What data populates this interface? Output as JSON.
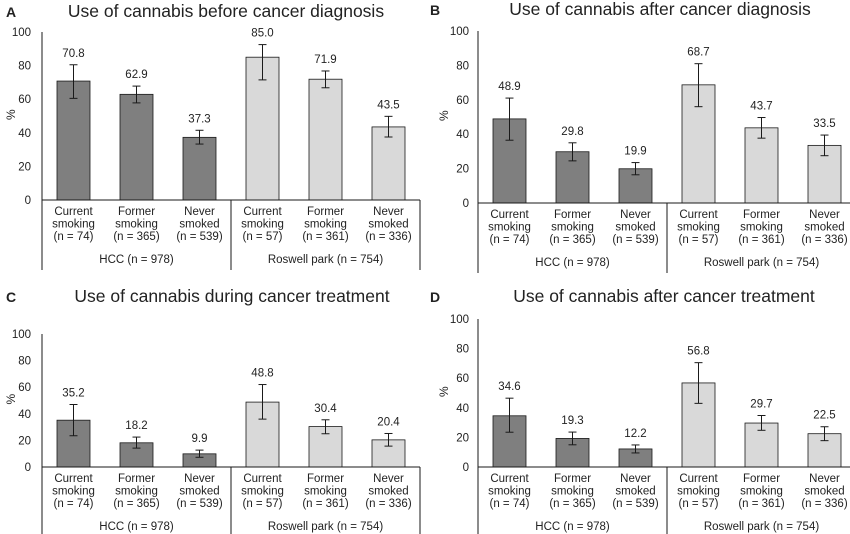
{
  "figure": {
    "colors": {
      "hcc": "#7f7f7f",
      "roswell": "#d9d9d9",
      "outline": "#1a1a1a",
      "text": "#222222"
    }
  },
  "chart_data": [
    {
      "type": "bar",
      "panel_label": "A",
      "title": "Use of cannabis before cancer diagnosis",
      "ylabel": "%",
      "ylim": [
        0,
        100
      ],
      "yticks": [
        0,
        20,
        40,
        60,
        80,
        100
      ],
      "grid": false,
      "groups": [
        {
          "name": "HCC (n = 978)",
          "color": "#7f7f7f",
          "categories": [
            [
              "Current",
              "smoking",
              "(n = 74)"
            ],
            [
              "Former",
              "smoking",
              "(n = 365)"
            ],
            [
              "Never",
              "smoked",
              "(n = 539)"
            ]
          ],
          "values": [
            70.8,
            62.9,
            37.3
          ],
          "error_low": [
            60.5,
            57.8,
            33.3
          ],
          "error_high": [
            80.5,
            67.8,
            41.5
          ]
        },
        {
          "name": "Roswell park (n = 754)",
          "color": "#d9d9d9",
          "categories": [
            [
              "Current",
              "smoking",
              "(n = 57)"
            ],
            [
              "Former",
              "smoking",
              "(n = 361)"
            ],
            [
              "Never",
              "smoked",
              "(n = 336)"
            ]
          ],
          "values": [
            85.0,
            71.9,
            43.5
          ],
          "error_low": [
            71.5,
            66.8,
            37.5
          ],
          "error_high": [
            92.5,
            76.8,
            49.8
          ]
        }
      ]
    },
    {
      "type": "bar",
      "panel_label": "B",
      "title": "Use of cannabis after cancer diagnosis",
      "ylabel": "%",
      "ylim": [
        0,
        100
      ],
      "yticks": [
        0,
        20,
        40,
        60,
        80,
        100
      ],
      "grid": false,
      "groups": [
        {
          "name": "HCC (n = 978)",
          "color": "#7f7f7f",
          "categories": [
            [
              "Current",
              "smoking",
              "(n = 74)"
            ],
            [
              "Former",
              "smoking",
              "(n = 365)"
            ],
            [
              "Never",
              "smoked",
              "(n = 539)"
            ]
          ],
          "values": [
            48.9,
            29.8,
            19.9
          ],
          "error_low": [
            36.5,
            24.5,
            16.4
          ],
          "error_high": [
            61.0,
            35.0,
            23.5
          ]
        },
        {
          "name": "Roswell park (n = 754)",
          "color": "#d9d9d9",
          "categories": [
            [
              "Current",
              "smoking",
              "(n = 57)"
            ],
            [
              "Former",
              "smoking",
              "(n = 361)"
            ],
            [
              "Never",
              "smoked",
              "(n = 336)"
            ]
          ],
          "values": [
            68.7,
            43.7,
            33.5
          ],
          "error_low": [
            56.0,
            37.7,
            27.5
          ],
          "error_high": [
            81.0,
            49.7,
            39.5
          ]
        }
      ]
    },
    {
      "type": "bar",
      "panel_label": "C",
      "title": "Use of cannabis during cancer treatment",
      "ylabel": "%",
      "ylim": [
        0,
        100
      ],
      "yticks": [
        0,
        20,
        40,
        60,
        80,
        100
      ],
      "grid": false,
      "groups": [
        {
          "name": "HCC (n = 978)",
          "color": "#7f7f7f",
          "categories": [
            [
              "Current",
              "smoking",
              "(n = 74)"
            ],
            [
              "Former",
              "smoking",
              "(n = 365)"
            ],
            [
              "Never",
              "smoked",
              "(n = 539)"
            ]
          ],
          "values": [
            35.2,
            18.2,
            9.9
          ],
          "error_low": [
            23.5,
            14.2,
            7.3
          ],
          "error_high": [
            47.0,
            22.5,
            12.7
          ]
        },
        {
          "name": "Roswell park (n = 754)",
          "color": "#d9d9d9",
          "categories": [
            [
              "Current",
              "smoking",
              "(n = 57)"
            ],
            [
              "Former",
              "smoking",
              "(n = 361)"
            ],
            [
              "Never",
              "smoked",
              "(n = 336)"
            ]
          ],
          "values": [
            48.8,
            30.4,
            20.4
          ],
          "error_low": [
            36.0,
            25.0,
            15.7
          ],
          "error_high": [
            62.0,
            35.5,
            25.2
          ]
        }
      ]
    },
    {
      "type": "bar",
      "panel_label": "D",
      "title": "Use of cannabis after cancer treatment",
      "ylabel": "%",
      "ylim": [
        0,
        100
      ],
      "yticks": [
        0,
        20,
        40,
        60,
        80,
        100
      ],
      "grid": false,
      "groups": [
        {
          "name": "HCC (n = 978)",
          "color": "#7f7f7f",
          "categories": [
            [
              "Current",
              "smoking",
              "(n = 74)"
            ],
            [
              "Former",
              "smoking",
              "(n = 365)"
            ],
            [
              "Never",
              "smoked",
              "(n = 539)"
            ]
          ],
          "values": [
            34.6,
            19.3,
            12.2
          ],
          "error_low": [
            23.5,
            15.0,
            9.5
          ],
          "error_high": [
            46.5,
            23.6,
            14.9
          ]
        },
        {
          "name": "Roswell park (n = 754)",
          "color": "#d9d9d9",
          "categories": [
            [
              "Current",
              "smoking",
              "(n = 57)"
            ],
            [
              "Former",
              "smoking",
              "(n = 361)"
            ],
            [
              "Never",
              "smoked",
              "(n = 336)"
            ]
          ],
          "values": [
            56.8,
            29.7,
            22.5
          ],
          "error_low": [
            43.0,
            24.8,
            17.8
          ],
          "error_high": [
            70.5,
            34.8,
            27.2
          ]
        }
      ]
    }
  ]
}
